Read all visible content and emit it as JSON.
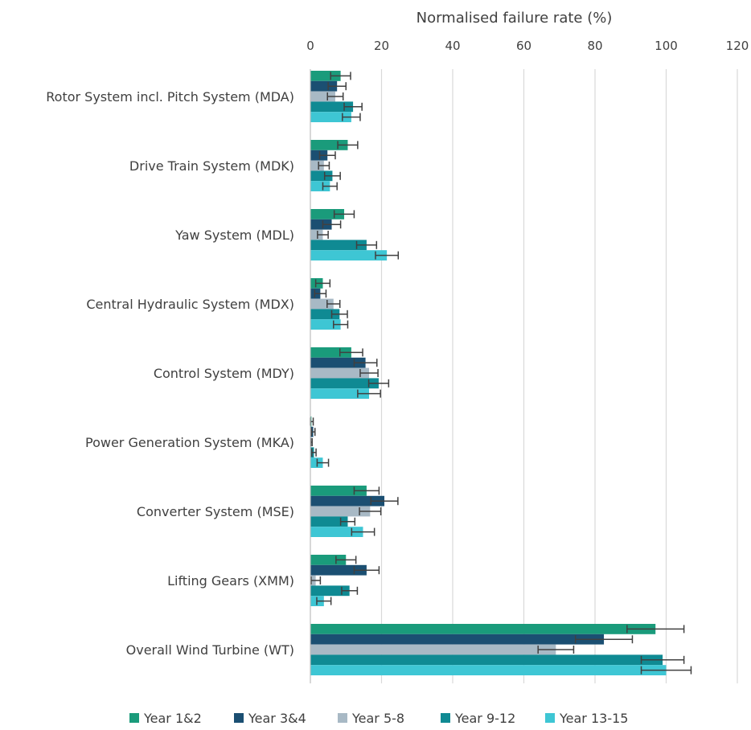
{
  "chart_data": {
    "type": "bar",
    "orientation": "horizontal",
    "title": "",
    "xlabel": "Normalised failure rate (%)",
    "xlabel_position": "top",
    "xlim": [
      0,
      120
    ],
    "xticks": [
      0,
      20,
      40,
      60,
      80,
      100,
      120
    ],
    "grid": "vertical",
    "legend_position": "bottom",
    "categories": [
      "Rotor System incl. Pitch System (MDA)",
      "Drive Train System (MDK)",
      "Yaw System (MDL)",
      "Central Hydraulic System (MDX)",
      "Control System (MDY)",
      "Power Generation System (MKA)",
      "Converter System (MSE)",
      "Lifting Gears (XMM)",
      "Overall Wind Turbine (WT)"
    ],
    "series": [
      {
        "name": "Year 1&2",
        "color": "#1a9b7b",
        "values": [
          8.5,
          10.5,
          9.5,
          3.5,
          11.5,
          0.3,
          15.8,
          10.0,
          97.0
        ],
        "errors": [
          2.8,
          2.8,
          2.8,
          2.0,
          3.2,
          0.5,
          3.5,
          2.8,
          8.0
        ]
      },
      {
        "name": "Year 3&4",
        "color": "#1b4f72",
        "values": [
          7.5,
          4.8,
          6.0,
          2.8,
          15.5,
          0.8,
          20.8,
          15.8,
          82.5
        ],
        "errors": [
          2.5,
          2.2,
          2.5,
          1.6,
          3.2,
          0.5,
          3.8,
          3.5,
          8.0
        ]
      },
      {
        "name": "Year 5-8",
        "color": "#a8b9c5",
        "values": [
          7.0,
          3.8,
          3.5,
          6.5,
          16.5,
          0.3,
          16.8,
          1.5,
          69.0
        ],
        "errors": [
          2.2,
          1.5,
          1.5,
          1.8,
          2.5,
          0.2,
          3.0,
          1.3,
          5.0
        ]
      },
      {
        "name": "Year 9-12",
        "color": "#0f8a93",
        "values": [
          12.0,
          6.2,
          15.8,
          8.2,
          19.2,
          1.0,
          10.5,
          11.0,
          99.0
        ],
        "errors": [
          2.5,
          2.2,
          2.8,
          2.2,
          2.8,
          0.6,
          2.0,
          2.2,
          6.0
        ]
      },
      {
        "name": "Year 13-15",
        "color": "#3ec6d4",
        "values": [
          11.5,
          5.5,
          21.5,
          8.5,
          16.5,
          3.5,
          14.8,
          3.8,
          100.0
        ],
        "errors": [
          2.5,
          2.0,
          3.2,
          2.0,
          3.2,
          1.6,
          3.2,
          2.0,
          7.0
        ]
      }
    ]
  }
}
